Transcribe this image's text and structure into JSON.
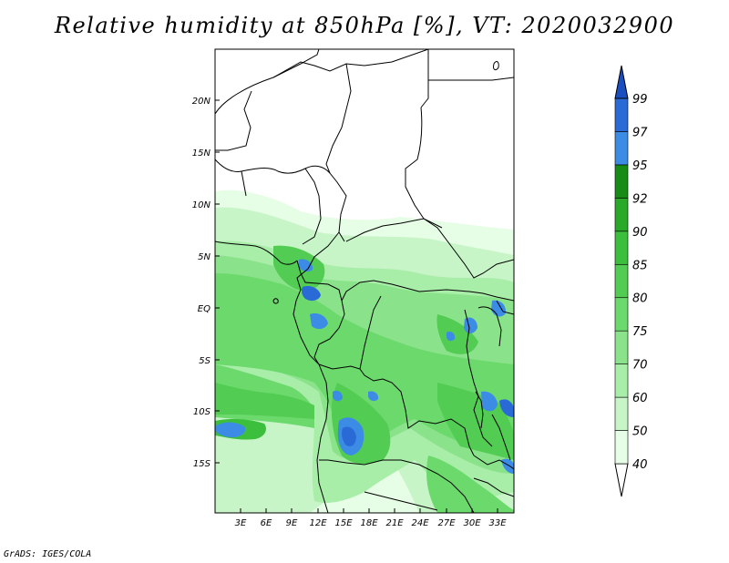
{
  "title": "Relative humidity at 850hPa [%], VT: 2020032900",
  "credit": "GrADS: IGES/COLA",
  "map": {
    "lat_ticks": [
      "20N",
      "15N",
      "10N",
      "5N",
      "EQ",
      "5S",
      "10S",
      "15S"
    ],
    "lon_ticks": [
      "3E",
      "6E",
      "9E",
      "12E",
      "15E",
      "18E",
      "21E",
      "24E",
      "27E",
      "30E",
      "33E"
    ]
  },
  "colorbar": {
    "levels": [
      "40",
      "50",
      "60",
      "70",
      "75",
      "80",
      "85",
      "90",
      "92",
      "95",
      "97",
      "99"
    ],
    "colors": [
      "#ffffff",
      "#e6fde6",
      "#c8f5c8",
      "#a8eda8",
      "#8ae38a",
      "#6cd96c",
      "#52cc52",
      "#3cbf3c",
      "#28aa28",
      "#168c16",
      "#3c8ce6",
      "#2a6ad6",
      "#1a4ec0"
    ]
  }
}
